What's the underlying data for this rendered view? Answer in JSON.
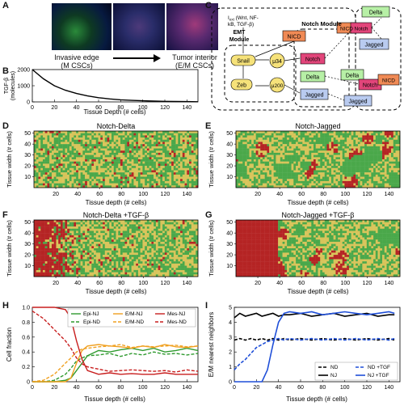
{
  "panels": {
    "A": {
      "label": "A",
      "caption_left": [
        "Invasive edge",
        "(M CSCs)"
      ],
      "caption_right": [
        "Tumor interior",
        "(E/M CSCs)"
      ]
    },
    "B": {
      "label": "B",
      "ylabel": [
        "TGF-β",
        "(molecules)"
      ],
      "xlabel": "Tissue Depth (# cells)",
      "xticks": [
        "0",
        "20",
        "40",
        "60",
        "80",
        "100",
        "120",
        "140"
      ],
      "yticks": [
        "0",
        "1000",
        "2000"
      ]
    },
    "C": {
      "label": "C",
      "ext_label": [
        "I",
        "ext",
        " (Wnt, NF-",
        "kB, TGF-β)"
      ],
      "emt_module": [
        "EMT",
        "Module"
      ],
      "notch_module": "Notch Module",
      "nodes": {
        "snail": "Snail",
        "zeb": "Zeb",
        "mu34": "μ34",
        "mu200": "μ200",
        "notch": "Notch",
        "delta": "Delta",
        "jagged": "Jagged",
        "nicd": "NICD"
      }
    },
    "D": {
      "label": "D",
      "title": "Notch-Delta"
    },
    "E": {
      "label": "E",
      "title": "Notch-Jagged"
    },
    "F": {
      "label": "F",
      "title": "Notch-Delta +TGF-β"
    },
    "G": {
      "label": "G",
      "title": "Notch-Jagged +TGF-β"
    },
    "heat_axes": {
      "ylabel": "Tissue width (# cells)",
      "xlabel": "Tissue depth (# cells)",
      "xticks": [
        "20",
        "40",
        "60",
        "80",
        "100",
        "120",
        "140"
      ],
      "yticks": [
        "10",
        "20",
        "30",
        "40",
        "50"
      ]
    },
    "H": {
      "label": "H",
      "ylabel": "Cell fraction",
      "xlabel": "Tissue depth (# cells)",
      "xticks": [
        "0",
        "20",
        "40",
        "60",
        "80",
        "100",
        "120",
        "140"
      ],
      "yticks": [
        "0",
        "0.2",
        "0.4",
        "0.6",
        "0.8",
        "1.0"
      ],
      "legend": [
        "Epi-NJ",
        "Epi-ND",
        "E/M-NJ",
        "E/M-ND",
        "Mes-NJ",
        "Mes-ND"
      ]
    },
    "I": {
      "label": "I",
      "ylabel": "E/M nearest neighbors",
      "xlabel": "Tissue depth (# cells)",
      "xticks": [
        "0",
        "20",
        "40",
        "60",
        "80",
        "100",
        "120",
        "140"
      ],
      "yticks": [
        "0",
        "1",
        "2",
        "3",
        "4",
        "5"
      ],
      "legend": [
        "ND",
        "NJ",
        "ND +TGF",
        "NJ +TGF"
      ]
    }
  },
  "colors": {
    "epi": "#4aa84a",
    "em": "#d8c45a",
    "mes": "#b52424",
    "blue": "#1f4fd8",
    "orange": "#f0a020",
    "green": "#2f9a2f",
    "red": "#c81e1e",
    "notch": "#e2457a",
    "delta": "#b7f0a6",
    "jagged": "#b9cbf0",
    "nicd": "#f08a55",
    "snail": "#f6e27a"
  },
  "chart_data": [
    {
      "type": "line",
      "panel": "B",
      "title": "",
      "xlabel": "Tissue Depth (# cells)",
      "ylabel": "TGF-β (molecules)",
      "xlim": [
        0,
        150
      ],
      "ylim": [
        0,
        2000
      ],
      "x": [
        0,
        10,
        20,
        30,
        40,
        50,
        60,
        70,
        80,
        90,
        100,
        110,
        120,
        130,
        140,
        150
      ],
      "series": [
        {
          "values": [
            2000,
            1430,
            1000,
            720,
            520,
            370,
            260,
            185,
            130,
            95,
            70,
            50,
            35,
            25,
            18,
            12
          ]
        }
      ]
    },
    {
      "type": "line",
      "panel": "H",
      "xlabel": "Tissue depth (# cells)",
      "ylabel": "Cell fraction",
      "xlim": [
        0,
        150
      ],
      "ylim": [
        0,
        1.0
      ],
      "x": [
        0,
        10,
        20,
        30,
        35,
        40,
        45,
        50,
        60,
        70,
        80,
        90,
        100,
        110,
        120,
        130,
        140,
        150
      ],
      "series": [
        {
          "name": "Epi-NJ",
          "values": [
            0.0,
            0.0,
            0.0,
            0.02,
            0.05,
            0.15,
            0.25,
            0.35,
            0.42,
            0.4,
            0.43,
            0.45,
            0.42,
            0.45,
            0.4,
            0.42,
            0.45,
            0.42
          ]
        },
        {
          "name": "Epi-ND",
          "values": [
            0.0,
            0.0,
            0.02,
            0.1,
            0.18,
            0.28,
            0.32,
            0.35,
            0.36,
            0.38,
            0.34,
            0.38,
            0.36,
            0.4,
            0.37,
            0.38,
            0.36,
            0.38
          ]
        },
        {
          "name": "E/M-NJ",
          "values": [
            0.0,
            0.0,
            0.0,
            0.0,
            0.05,
            0.25,
            0.42,
            0.48,
            0.5,
            0.48,
            0.47,
            0.45,
            0.48,
            0.46,
            0.5,
            0.47,
            0.46,
            0.48
          ]
        },
        {
          "name": "E/M-ND",
          "values": [
            0.0,
            0.02,
            0.1,
            0.25,
            0.32,
            0.4,
            0.44,
            0.45,
            0.47,
            0.48,
            0.5,
            0.46,
            0.48,
            0.47,
            0.48,
            0.49,
            0.47,
            0.48
          ]
        },
        {
          "name": "Mes-NJ",
          "values": [
            1.0,
            1.0,
            1.0,
            0.97,
            0.85,
            0.55,
            0.3,
            0.15,
            0.1,
            0.12,
            0.1,
            0.11,
            0.1,
            0.1,
            0.12,
            0.1,
            0.1,
            0.1
          ]
        },
        {
          "name": "Mes-ND",
          "values": [
            0.95,
            0.85,
            0.7,
            0.55,
            0.45,
            0.32,
            0.24,
            0.2,
            0.17,
            0.14,
            0.15,
            0.16,
            0.15,
            0.14,
            0.15,
            0.13,
            0.16,
            0.14
          ]
        }
      ]
    },
    {
      "type": "line",
      "panel": "I",
      "xlabel": "Tissue depth (# cells)",
      "ylabel": "E/M nearest neighbors",
      "xlim": [
        0,
        150
      ],
      "ylim": [
        0,
        5
      ],
      "x": [
        0,
        5,
        10,
        15,
        20,
        25,
        30,
        35,
        40,
        45,
        50,
        60,
        70,
        80,
        90,
        100,
        110,
        120,
        130,
        140,
        145
      ],
      "series": [
        {
          "name": "ND",
          "values": [
            2.8,
            2.9,
            2.8,
            2.9,
            2.8,
            2.9,
            2.8,
            2.9,
            2.8,
            2.9,
            2.8,
            2.9,
            2.8,
            2.9,
            2.8,
            2.9,
            2.8,
            2.9,
            2.8,
            2.9,
            2.8
          ]
        },
        {
          "name": "NJ",
          "values": [
            4.3,
            4.6,
            4.4,
            4.5,
            4.6,
            4.4,
            4.5,
            4.6,
            4.4,
            4.5,
            4.5,
            4.6,
            4.4,
            4.5,
            4.6,
            4.4,
            4.5,
            4.6,
            4.4,
            4.5,
            4.5
          ]
        },
        {
          "name": "ND +TGF",
          "values": [
            0.8,
            1.2,
            1.5,
            1.9,
            2.3,
            2.5,
            2.7,
            2.8,
            2.9,
            2.8,
            2.9,
            2.8,
            2.9,
            2.8,
            2.9,
            2.8,
            2.9,
            2.8,
            2.9,
            2.8,
            2.9
          ]
        },
        {
          "name": "NJ +TGF",
          "values": [
            0.0,
            0.0,
            0.0,
            0.0,
            0.0,
            0.0,
            0.8,
            2.5,
            4.0,
            4.6,
            4.7,
            4.6,
            4.7,
            4.5,
            4.6,
            4.7,
            4.6,
            4.5,
            4.6,
            4.7,
            4.6
          ]
        }
      ]
    }
  ]
}
